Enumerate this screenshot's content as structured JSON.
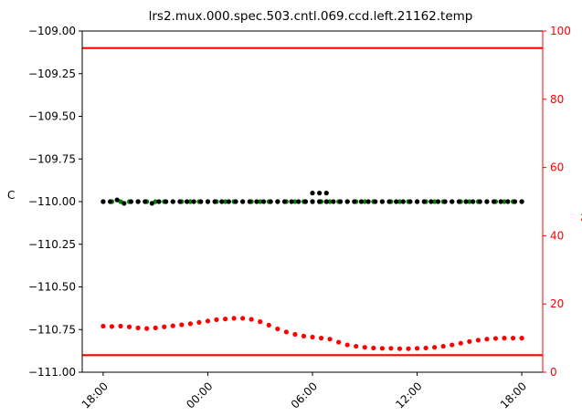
{
  "chart_data": {
    "type": "scatter",
    "title": "lrs2.mux.000.spec.503.cntl.069.ccd.left.21162.temp",
    "ylabel": "C",
    "y2label": "%",
    "ylim": [
      -111.0,
      -109.0
    ],
    "y2lim": [
      0,
      100
    ],
    "xlim": [
      -1.2,
      25.2
    ],
    "x_ticks": [
      0,
      6,
      12,
      18,
      24
    ],
    "x_tick_labels": [
      "18:00",
      "00:00",
      "06:00",
      "12:00",
      "18:00"
    ],
    "y_ticks": [
      -109.0,
      -109.25,
      -109.5,
      -109.75,
      -110.0,
      -110.25,
      -110.5,
      -110.75,
      -111.0
    ],
    "y_tick_labels": [
      "−109.00",
      "−109.25",
      "−109.50",
      "−109.75",
      "−110.00",
      "−110.25",
      "−110.50",
      "−110.75",
      "−111.00"
    ],
    "y2_ticks": [
      0,
      20,
      40,
      60,
      80,
      100
    ],
    "y2_tick_labels": [
      "0",
      "20",
      "40",
      "60",
      "80",
      "100"
    ],
    "hlines": [
      {
        "y": 95,
        "axis": "right",
        "color": "#ff0000"
      },
      {
        "y": 5,
        "axis": "right",
        "color": "#ff0000"
      }
    ],
    "series": [
      {
        "axis": "left",
        "color": "#008000",
        "x": [
          0,
          0.5,
          1,
          1.5,
          2,
          2.5,
          3,
          3.5,
          4,
          4.5,
          5,
          5.5,
          6,
          6.5,
          7,
          7.5,
          8,
          8.5,
          9,
          9.5,
          10,
          10.5,
          11,
          11.5,
          12,
          12.5,
          13,
          13.5,
          14,
          14.5,
          15,
          15.5,
          16,
          16.5,
          17,
          17.5,
          18,
          18.5,
          19,
          19.5,
          20,
          20.5,
          21,
          21.5,
          22,
          22.5,
          23,
          23.5,
          24
        ],
        "y": [
          -110.0,
          -110.0,
          -110.0,
          -110.0,
          -110.0,
          -110.0,
          -110.0,
          -110.0,
          -110.0,
          -110.0,
          -110.0,
          -110.0,
          -110.0,
          -110.0,
          -110.0,
          -110.0,
          -110.0,
          -110.0,
          -110.0,
          -110.0,
          -110.0,
          -110.0,
          -110.0,
          -110.0,
          -110.0,
          -110.0,
          -110.0,
          -110.0,
          -110.0,
          -110.0,
          -110.0,
          -110.0,
          -110.0,
          -110.0,
          -110.0,
          -110.0,
          -110.0,
          -110.0,
          -110.0,
          -110.0,
          -110.0,
          -110.0,
          -110.0,
          -110.0,
          -110.0,
          -110.0,
          -110.0,
          -110.0,
          -110.0
        ]
      },
      {
        "axis": "left",
        "color": "#000000",
        "x": [
          0,
          0.4,
          0.8,
          1.2,
          1.6,
          2.0,
          2.4,
          2.8,
          3.2,
          3.6,
          4.0,
          4.4,
          4.8,
          5.2,
          5.6,
          6.0,
          6.4,
          6.8,
          7.2,
          7.6,
          8.0,
          8.4,
          8.8,
          9.2,
          9.6,
          10.0,
          10.4,
          10.8,
          11.2,
          11.6,
          12.0,
          12.4,
          12.8,
          13.2,
          13.6,
          14.0,
          14.4,
          14.8,
          15.2,
          15.6,
          16.0,
          16.4,
          16.8,
          17.2,
          17.6,
          18.0,
          18.4,
          18.8,
          19.2,
          19.6,
          20.0,
          20.4,
          20.8,
          21.2,
          21.6,
          22.0,
          22.4,
          22.8,
          23.2,
          23.6,
          24.0,
          11.6,
          12.0,
          12.4,
          12.8,
          12.0,
          12.4,
          12.8
        ],
        "y": [
          -110.0,
          -110.0,
          -109.99,
          -110.01,
          -110.0,
          -110.0,
          -110.0,
          -110.01,
          -110.0,
          -110.0,
          -110.0,
          -110.0,
          -110.0,
          -110.0,
          -110.0,
          -110.0,
          -110.0,
          -110.0,
          -110.0,
          -110.0,
          -110.0,
          -110.0,
          -110.0,
          -110.0,
          -110.0,
          -110.0,
          -110.0,
          -110.0,
          -110.0,
          -110.0,
          -110.0,
          -110.0,
          -110.0,
          -110.0,
          -110.0,
          -110.0,
          -110.0,
          -110.0,
          -110.0,
          -110.0,
          -110.0,
          -110.0,
          -110.0,
          -110.0,
          -110.0,
          -110.0,
          -110.0,
          -110.0,
          -110.0,
          -110.0,
          -110.0,
          -110.0,
          -110.0,
          -110.0,
          -110.0,
          -110.0,
          -110.0,
          -110.0,
          -110.0,
          -110.0,
          -110.0,
          -110.0,
          -110.0,
          -110.0,
          -110.0,
          -109.95,
          -109.95,
          -109.95
        ]
      },
      {
        "axis": "right",
        "color": "#ff0000",
        "x": [
          0,
          0.5,
          1,
          1.5,
          2,
          2.5,
          3,
          3.5,
          4,
          4.5,
          5,
          5.5,
          6,
          6.5,
          7,
          7.5,
          8,
          8.5,
          9,
          9.5,
          10,
          10.5,
          11,
          11.5,
          12,
          12.5,
          13,
          13.5,
          14,
          14.5,
          15,
          15.5,
          16,
          16.5,
          17,
          17.5,
          18,
          18.5,
          19,
          19.5,
          20,
          20.5,
          21,
          21.5,
          22,
          22.5,
          23,
          23.5,
          24
        ],
        "y": [
          13.5,
          13.4,
          13.5,
          13.3,
          13.0,
          12.8,
          13.0,
          13.3,
          13.6,
          13.9,
          14.2,
          14.6,
          15.0,
          15.4,
          15.6,
          15.8,
          15.8,
          15.5,
          14.8,
          13.8,
          12.7,
          11.8,
          11.1,
          10.6,
          10.3,
          10.0,
          9.7,
          8.8,
          8.0,
          7.6,
          7.3,
          7.1,
          7.0,
          7.0,
          6.9,
          6.9,
          7.0,
          7.1,
          7.3,
          7.6,
          8.0,
          8.5,
          9.0,
          9.4,
          9.7,
          9.9,
          10.0,
          10.0,
          10.0
        ]
      }
    ]
  }
}
